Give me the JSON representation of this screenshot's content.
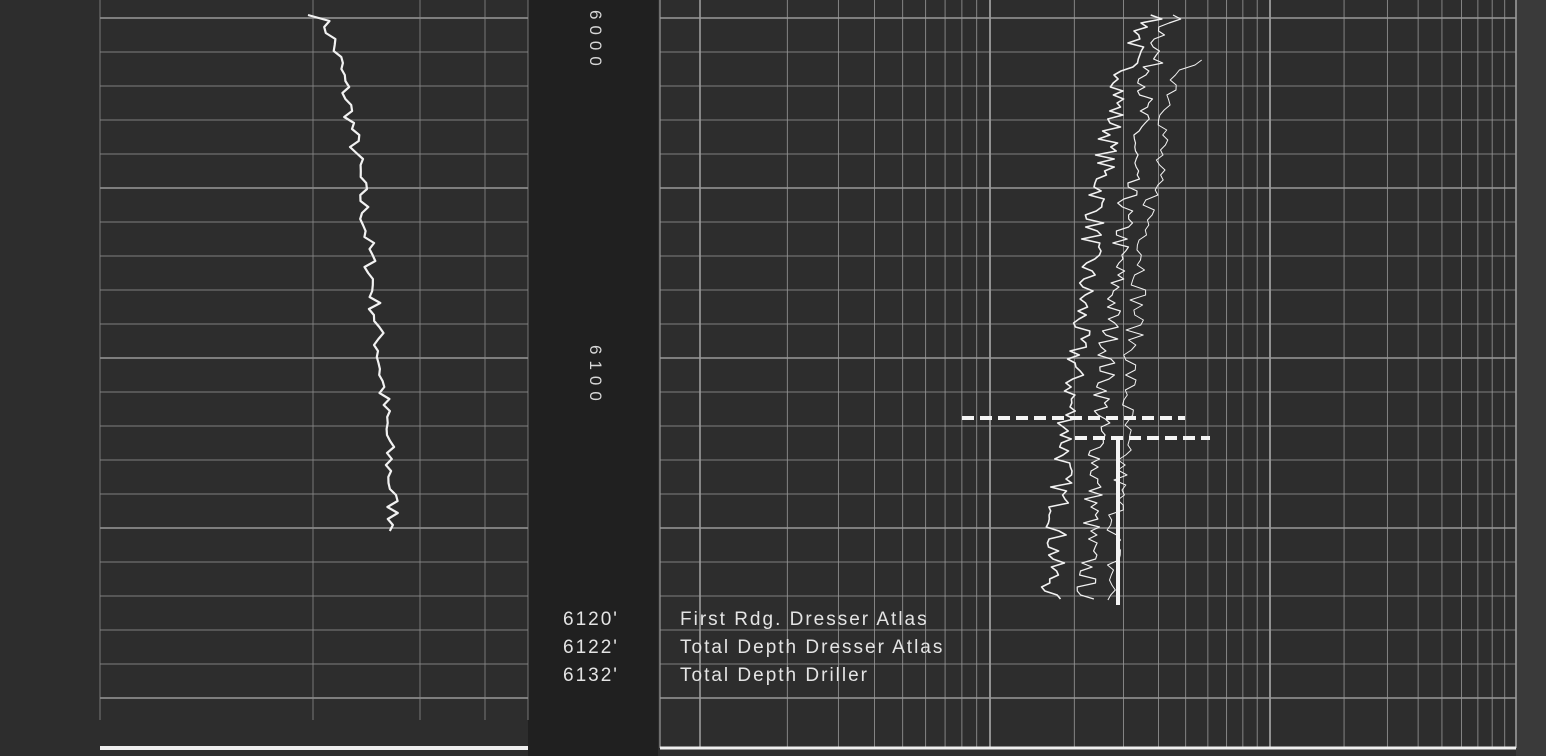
{
  "depth_labels": [
    "6000",
    "6100"
  ],
  "notes": [
    {
      "depth": "6120'",
      "text": "First Rdg. Dresser Atlas"
    },
    {
      "depth": "6122'",
      "text": "Total Depth Dresser Atlas"
    },
    {
      "depth": "6132'",
      "text": "Total Depth Driller"
    }
  ]
}
